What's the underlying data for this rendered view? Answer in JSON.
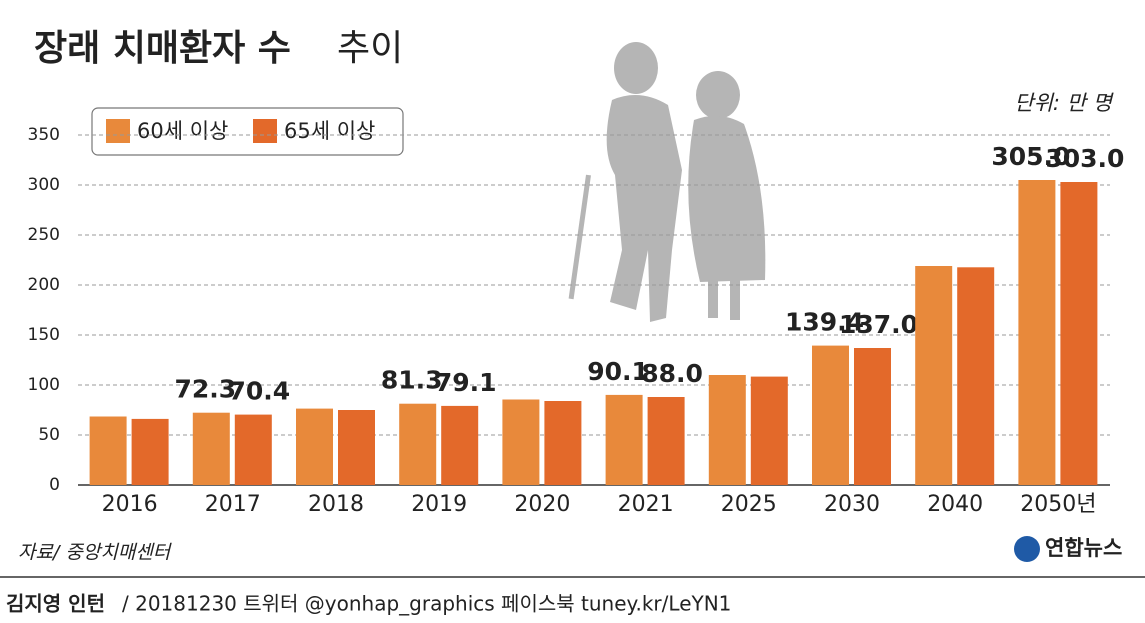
{
  "chart_data": {
    "type": "bar",
    "title": "장래 치매환자 수",
    "title_suffix": "추이",
    "unit_note": "단위: 만 명",
    "source": "자료/ 중앙치매센터",
    "logo": "연합뉴스",
    "footer_author": "김지영 인턴",
    "footer_text": "/ 20181230 트위터 @yonhap_graphics  페이스북 tuney.kr/LeYN1",
    "categories": [
      "2016",
      "2017",
      "2018",
      "2019",
      "2020",
      "2021",
      "2025",
      "2030",
      "2040",
      "2050년"
    ],
    "series": [
      {
        "name": "60세 이상",
        "color": "#e8893b",
        "values": [
          68.5,
          72.3,
          76.4,
          81.3,
          85.5,
          90.1,
          110.0,
          139.4,
          219.0,
          305.0
        ],
        "value_labels": [
          null,
          "72.3",
          null,
          "81.3",
          null,
          "90.1",
          null,
          "139.4",
          null,
          "305.0"
        ]
      },
      {
        "name": "65세 이상",
        "color": "#e3692a",
        "values": [
          66.1,
          70.4,
          75.0,
          79.1,
          84.0,
          88.0,
          108.4,
          137.0,
          217.7,
          303.0
        ],
        "value_labels": [
          null,
          "70.4",
          null,
          "79.1",
          null,
          "88.0",
          null,
          "137.0",
          null,
          "303.0"
        ]
      }
    ],
    "ylim": [
      0,
      350
    ],
    "yticks": [
      0,
      50,
      100,
      150,
      200,
      250,
      300,
      350
    ],
    "grid": true
  }
}
